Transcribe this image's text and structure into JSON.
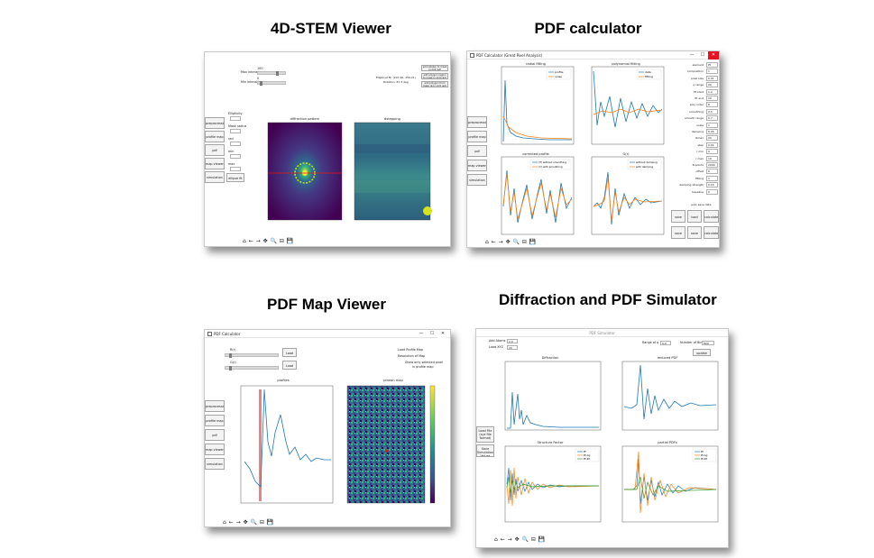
{
  "titles": {
    "stem": "4D-STEM Viewer",
    "pdf": "PDF calculator",
    "map": "PDF Map Viewer",
    "sim": "Diffraction and PDF Simulator"
  },
  "stem": {
    "side_buttons": [
      "preprocessing",
      "profile map",
      "pdf",
      "map viewer",
      "simulation"
    ],
    "fields": {
      "intensity_label": "Max intensity",
      "intensity_value": "100",
      "min_label": "Min intensity",
      "min_value": "0",
      "right_info_1": "Elliptical fit: (297.90, 259.21)",
      "right_info_2": "Rotation: 87.3 deg",
      "btn_a": "add sidebar to mask (r<0.8 rad)",
      "btn_b": "add polygon region to mask (r<0.8 rad)",
      "btn_c": "add polygon from mask (2<r<0.8 rad)"
    },
    "left_labels": [
      "Ellipticity",
      "Mask radius",
      "rad",
      "min",
      "max",
      "ellipse fit"
    ],
    "plot_titles": [
      "diffraction pattern",
      "dstepping"
    ],
    "toolbar": "⌂ ← → ✥ 🔍 ⊟ 💾"
  },
  "pdf": {
    "window_title": "PDF Calculator (Great Pixel Analysis)",
    "side_buttons": [
      "preprocessing",
      "profile map",
      "pdf",
      "map viewer",
      "simulation"
    ],
    "plot_titles": [
      "radial fitting",
      "polynomial fitting",
      "corrected profile",
      "G(r)"
    ],
    "legends": {
      "p1": [
        "profile",
        "noise"
      ],
      "p2": [
        "data",
        "fitting"
      ],
      "p3": [
        "l(f) without smoothing",
        "l(r) with smoothing"
      ],
      "p4": [
        "without damping",
        "with damping"
      ]
    },
    "right_params": [
      {
        "label": "element",
        "value": "Pt"
      },
      {
        "label": "composition",
        "value": "1"
      },
      {
        "label": "pixel size",
        "value": "0.01"
      },
      {
        "label": "q range",
        "value": "20"
      },
      {
        "label": "fit start",
        "value": "1.2"
      },
      {
        "label": "fit end",
        "value": "10"
      },
      {
        "label": "poly order",
        "value": "6"
      },
      {
        "label": "smoothing",
        "value": "0.5"
      },
      {
        "label": "smooth range",
        "value": "0.7"
      },
      {
        "label": "scale",
        "value": "1"
      },
      {
        "label": "damping",
        "value": "0.05"
      },
      {
        "label": "Rmax",
        "value": "20"
      },
      {
        "label": "step",
        "value": "0.01"
      },
      {
        "label": "r min",
        "value": "0"
      },
      {
        "label": "r max",
        "value": "10"
      },
      {
        "label": "N points",
        "value": "2000"
      },
      {
        "label": "offset",
        "value": "0"
      },
      {
        "label": "fitting",
        "value": "1"
      },
      {
        "label": "damping strength",
        "value": "0.15"
      },
      {
        "label": "baseline",
        "value": "0"
      }
    ],
    "bottom_buttons": [
      "save",
      "load",
      "calculate",
      "save",
      "save",
      "calculate"
    ],
    "checkbox": "auto save data",
    "toolbar": "⌂ ← → ✥ 🔍 ⊟ 💾",
    "win_close": "✕",
    "win_min": "—",
    "win_max": "☐"
  },
  "map": {
    "window_title": "PDF Calculator",
    "side_buttons": [
      "preprocessing",
      "profile map",
      "pdf",
      "map viewer",
      "simulation"
    ],
    "slider_labels": [
      "R(r)",
      "G(r)"
    ],
    "slider_btns": [
      "Load",
      "Load"
    ],
    "right_info": [
      "Load Profile Map",
      "Resolution of Map",
      "Show only selected pixel",
      "in profile map"
    ],
    "plot_titles": [
      "profiles",
      "pmean map"
    ],
    "colorbar_ticks": [
      "0.4",
      "0.2",
      "0.0",
      "-0.2",
      "-0.4",
      "-0.6",
      "-0.8"
    ],
    "toolbar": "⌂ ← → ✥ 🔍 ⊟ 💾",
    "win_close": "✕",
    "win_min": "—",
    "win_max": "☐"
  },
  "sim": {
    "window_title": "PDF Simulator",
    "top_labels": [
      "Add Atoms",
      "Load XYZ",
      "Range of q",
      "Number of Bins"
    ],
    "top_values": [
      "2.0",
      "20",
      "0.0",
      "800"
    ],
    "side_buttons": [
      "Load File (xyz file format)",
      "Save Simulation Values"
    ],
    "plot_titles": [
      "Diffraction",
      "reduced PDF",
      "Structure Factor",
      "partial PDFs"
    ],
    "legends": {
      "sf": [
        "Pt",
        "Pt-Ag",
        "Pt-Pd"
      ],
      "pp": [
        "Pt",
        "Pt-Ag",
        "Pt-Pd"
      ]
    },
    "buttons": [
      "update"
    ],
    "toolbar": "⌂ ← → ✥ 🔍 ⊟ 💾"
  }
}
